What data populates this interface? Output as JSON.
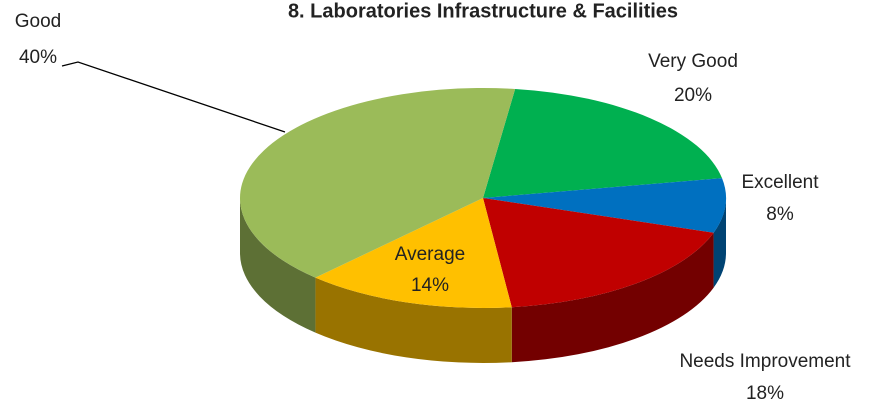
{
  "chart_data": {
    "type": "pie3d",
    "title": "8. Laboratories Infrastructure & Facilities",
    "categories": [
      "Very Good",
      "Excellent",
      "Needs Improvement",
      "Average",
      "Good"
    ],
    "values": [
      20,
      8,
      18,
      14,
      40
    ],
    "value_labels": [
      "20%",
      "8%",
      "18%",
      "14%",
      "40%"
    ],
    "colors": [
      "#00b050",
      "#0070c0",
      "#c00000",
      "#ffc000",
      "#9bbb59"
    ]
  }
}
